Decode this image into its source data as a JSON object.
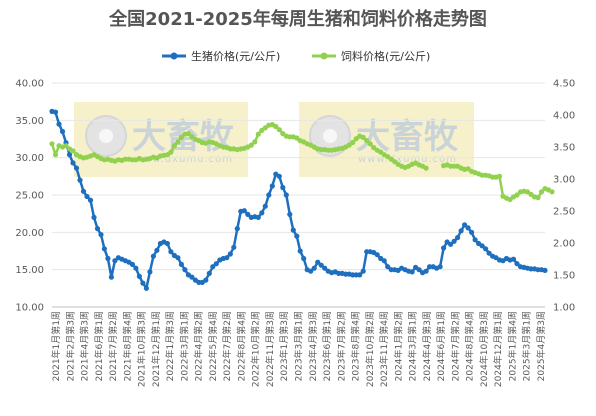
{
  "chart_data": {
    "type": "line",
    "title": "全国2021-2025年每周生猪和饲料价格走势图",
    "legend_position": "top",
    "grid": "horizontal",
    "series": [
      {
        "name": "生猪价格(元/公斤)",
        "axis": "left",
        "color": "#1f6fbf",
        "values": [
          36.2,
          36.1,
          34.5,
          33.5,
          32.0,
          30.4,
          29.3,
          28.6,
          27.0,
          25.5,
          24.8,
          24.3,
          22.0,
          20.5,
          19.7,
          17.8,
          16.5,
          14.0,
          16.2,
          16.6,
          16.4,
          16.2,
          16.0,
          15.7,
          15.2,
          14.1,
          13.2,
          12.5,
          14.7,
          16.8,
          17.6,
          18.5,
          18.7,
          18.5,
          17.4,
          16.9,
          16.6,
          15.7,
          15.0,
          14.3,
          14.0,
          13.6,
          13.3,
          13.3,
          13.6,
          14.5,
          15.4,
          15.8,
          16.3,
          16.5,
          16.6,
          17.1,
          18.0,
          20.5,
          22.8,
          22.9,
          22.4,
          22.0,
          22.1,
          22.0,
          22.6,
          23.5,
          25.0,
          26.2,
          27.8,
          27.5,
          26.0,
          25.0,
          22.4,
          20.3,
          19.5,
          17.5,
          16.5,
          15.0,
          14.8,
          15.2,
          16.0,
          15.6,
          15.2,
          14.8,
          14.6,
          14.7,
          14.5,
          14.5,
          14.4,
          14.4,
          14.3,
          14.3,
          14.3,
          14.8,
          17.4,
          17.4,
          17.3,
          17.0,
          16.5,
          16.2,
          15.4,
          15.0,
          15.0,
          14.9,
          15.2,
          15.0,
          14.8,
          14.7,
          15.3,
          15.0,
          14.6,
          14.8,
          15.4,
          15.4,
          15.2,
          15.4,
          17.9,
          18.7,
          18.4,
          18.8,
          19.3,
          20.2,
          21.0,
          20.6,
          20.0,
          19.0,
          18.5,
          18.2,
          17.8,
          17.2,
          16.8,
          16.6,
          16.3,
          16.2,
          16.5,
          16.3,
          16.4,
          15.8,
          15.4,
          15.3,
          15.2,
          15.1,
          15.1,
          15.0,
          15.0,
          14.9
        ]
      },
      {
        "name": "饲料价格(元/公斤)",
        "axis": "right",
        "color": "#92d050",
        "values": [
          3.55,
          3.38,
          3.52,
          3.5,
          3.52,
          3.47,
          3.44,
          3.38,
          3.35,
          3.33,
          3.34,
          3.36,
          3.38,
          3.35,
          3.32,
          3.3,
          3.31,
          3.29,
          3.28,
          3.3,
          3.29,
          3.31,
          3.31,
          3.3,
          3.3,
          3.32,
          3.3,
          3.31,
          3.32,
          3.34,
          3.33,
          3.36,
          3.37,
          3.38,
          3.42,
          3.52,
          3.58,
          3.65,
          3.7,
          3.71,
          3.66,
          3.62,
          3.6,
          3.57,
          3.56,
          3.58,
          3.57,
          3.55,
          3.52,
          3.5,
          3.49,
          3.47,
          3.47,
          3.46,
          3.47,
          3.48,
          3.5,
          3.53,
          3.58,
          3.7,
          3.76,
          3.8,
          3.84,
          3.85,
          3.82,
          3.77,
          3.71,
          3.67,
          3.66,
          3.66,
          3.64,
          3.6,
          3.58,
          3.55,
          3.53,
          3.5,
          3.47,
          3.46,
          3.46,
          3.45,
          3.45,
          3.46,
          3.47,
          3.48,
          3.5,
          3.53,
          3.57,
          3.63,
          3.67,
          3.65,
          3.6,
          3.55,
          3.49,
          3.45,
          3.42,
          3.38,
          3.35,
          3.31,
          3.27,
          3.23,
          3.2,
          3.18,
          3.2,
          3.23,
          3.25,
          3.22,
          3.2,
          3.17,
          null,
          null,
          null,
          null,
          3.21,
          3.22,
          3.2,
          3.2,
          3.2,
          3.17,
          3.15,
          3.16,
          3.12,
          3.1,
          3.08,
          3.06,
          3.06,
          3.05,
          3.03,
          3.03,
          3.04,
          2.73,
          2.7,
          2.68,
          2.72,
          2.75,
          2.8,
          2.81,
          2.8,
          2.76,
          2.72,
          2.71,
          2.8,
          2.85,
          2.83,
          2.8
        ]
      }
    ],
    "y_left": {
      "min": 10,
      "max": 40,
      "ticks": [
        "10.00",
        "15.00",
        "20.00",
        "25.00",
        "30.00",
        "35.00",
        "40.00"
      ]
    },
    "y_right": {
      "min": 1.0,
      "max": 4.5,
      "ticks": [
        "1.00",
        "1.50",
        "2.00",
        "2.50",
        "3.00",
        "3.50",
        "4.00",
        "4.50"
      ]
    },
    "x_tick_labels": [
      "2021年1月第1周",
      "2021年2月第3周",
      "2021年4月第3周",
      "2021年6月第1周",
      "2021年7月第2周",
      "2021年8月第4周",
      "2021年10月第3周",
      "2021年12月第1周",
      "2022年1月第3周",
      "2022年3月第1周",
      "2022年4月第2周",
      "2022年5月第4周",
      "2022年7月第2周",
      "2022年8月第4周",
      "2022年10月第2周",
      "2022年11月第3周",
      "2023年1月第3周",
      "2023年3月第1周",
      "2023年4月第3周",
      "2023年6月第1周",
      "2023年7月第2周",
      "2023年8月第4周",
      "2023年10月第2周",
      "2023年11月第4周",
      "2024年1月第2周",
      "2024年3月第1周",
      "2024年4月第3周",
      "2024年6月第1周",
      "2024年7月第2周",
      "2024年8月第4周",
      "2024年10月第3周",
      "2024年12月第1周",
      "2025年1月第4周",
      "2025年3月第1周",
      "2025年4月第3周"
    ],
    "watermark": {
      "text": "大畜牧",
      "subtext": "www.dxumu.com"
    }
  }
}
